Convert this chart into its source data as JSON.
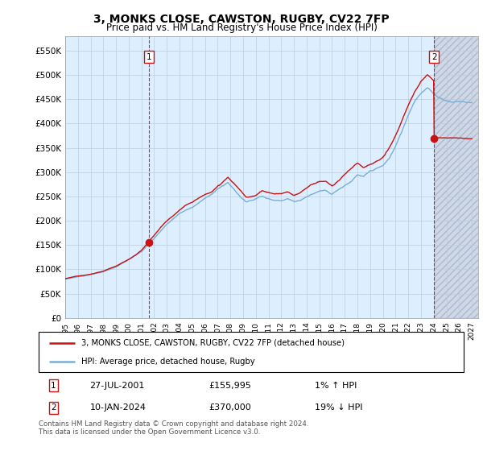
{
  "title": "3, MONKS CLOSE, CAWSTON, RUGBY, CV22 7FP",
  "subtitle": "Price paid vs. HM Land Registry's House Price Index (HPI)",
  "ylim": [
    0,
    580000
  ],
  "yticks": [
    0,
    50000,
    100000,
    150000,
    200000,
    250000,
    300000,
    350000,
    400000,
    450000,
    500000,
    550000
  ],
  "ytick_labels": [
    "£0",
    "£50K",
    "£100K",
    "£150K",
    "£200K",
    "£250K",
    "£300K",
    "£350K",
    "£400K",
    "£450K",
    "£500K",
    "£550K"
  ],
  "xmin": 1995.0,
  "xmax": 2027.5,
  "sale1_x": 2001.57,
  "sale1_y": 155995,
  "sale2_x": 2024.03,
  "sale2_y": 370000,
  "sale1_date": "27-JUL-2001",
  "sale1_price": "£155,995",
  "sale1_hpi": "1% ↑ HPI",
  "sale2_date": "10-JAN-2024",
  "sale2_price": "£370,000",
  "sale2_hpi": "19% ↓ HPI",
  "hpi_color": "#7aafd4",
  "price_color": "#cc1111",
  "dashed_color": "#cc1111",
  "bg_plot": "#ddeeff",
  "bg_hatch": "#d0d8e8",
  "background_color": "#ffffff",
  "grid_color": "#bbccdd",
  "legend_line1": "3, MONKS CLOSE, CAWSTON, RUGBY, CV22 7FP (detached house)",
  "legend_line2": "HPI: Average price, detached house, Rugby",
  "footer": "Contains HM Land Registry data © Crown copyright and database right 2024.\nThis data is licensed under the Open Government Licence v3.0.",
  "title_fontsize": 10,
  "subtitle_fontsize": 8.5
}
